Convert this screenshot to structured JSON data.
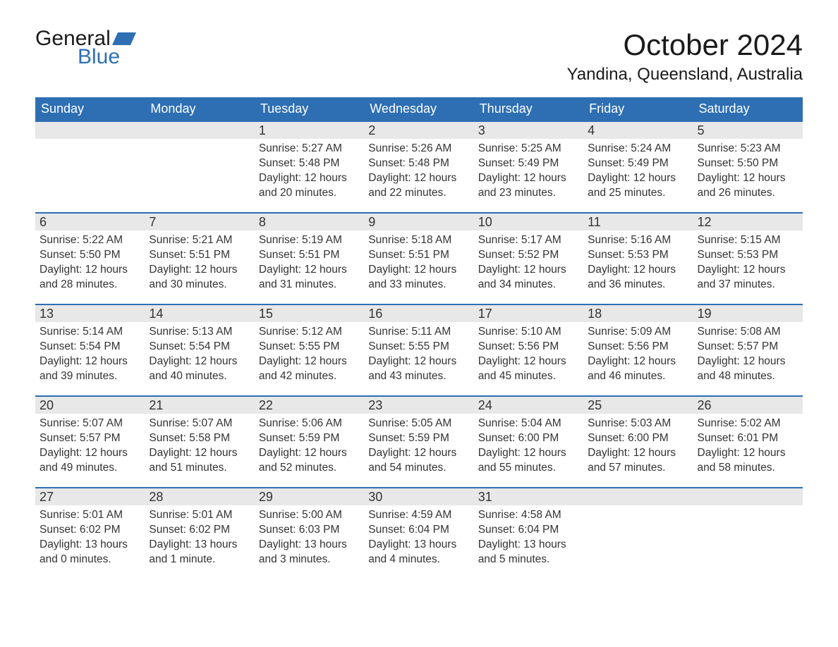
{
  "logo": {
    "word1": "General",
    "word2": "Blue"
  },
  "title": "October 2024",
  "location": "Yandina, Queensland, Australia",
  "colors": {
    "header_bg": "#2e6fb3",
    "header_text": "#ffffff",
    "daynum_bg": "#e8e8e8",
    "row_border": "#2e6fb3",
    "text": "#333333",
    "logo_blue": "#2e6fb3"
  },
  "weekdays": [
    "Sunday",
    "Monday",
    "Tuesday",
    "Wednesday",
    "Thursday",
    "Friday",
    "Saturday"
  ],
  "weeks": [
    [
      {
        "day": "",
        "sunrise": "",
        "sunset": "",
        "daylight": ""
      },
      {
        "day": "",
        "sunrise": "",
        "sunset": "",
        "daylight": ""
      },
      {
        "day": "1",
        "sunrise": "Sunrise: 5:27 AM",
        "sunset": "Sunset: 5:48 PM",
        "daylight": "Daylight: 12 hours and 20 minutes."
      },
      {
        "day": "2",
        "sunrise": "Sunrise: 5:26 AM",
        "sunset": "Sunset: 5:48 PM",
        "daylight": "Daylight: 12 hours and 22 minutes."
      },
      {
        "day": "3",
        "sunrise": "Sunrise: 5:25 AM",
        "sunset": "Sunset: 5:49 PM",
        "daylight": "Daylight: 12 hours and 23 minutes."
      },
      {
        "day": "4",
        "sunrise": "Sunrise: 5:24 AM",
        "sunset": "Sunset: 5:49 PM",
        "daylight": "Daylight: 12 hours and 25 minutes."
      },
      {
        "day": "5",
        "sunrise": "Sunrise: 5:23 AM",
        "sunset": "Sunset: 5:50 PM",
        "daylight": "Daylight: 12 hours and 26 minutes."
      }
    ],
    [
      {
        "day": "6",
        "sunrise": "Sunrise: 5:22 AM",
        "sunset": "Sunset: 5:50 PM",
        "daylight": "Daylight: 12 hours and 28 minutes."
      },
      {
        "day": "7",
        "sunrise": "Sunrise: 5:21 AM",
        "sunset": "Sunset: 5:51 PM",
        "daylight": "Daylight: 12 hours and 30 minutes."
      },
      {
        "day": "8",
        "sunrise": "Sunrise: 5:19 AM",
        "sunset": "Sunset: 5:51 PM",
        "daylight": "Daylight: 12 hours and 31 minutes."
      },
      {
        "day": "9",
        "sunrise": "Sunrise: 5:18 AM",
        "sunset": "Sunset: 5:51 PM",
        "daylight": "Daylight: 12 hours and 33 minutes."
      },
      {
        "day": "10",
        "sunrise": "Sunrise: 5:17 AM",
        "sunset": "Sunset: 5:52 PM",
        "daylight": "Daylight: 12 hours and 34 minutes."
      },
      {
        "day": "11",
        "sunrise": "Sunrise: 5:16 AM",
        "sunset": "Sunset: 5:53 PM",
        "daylight": "Daylight: 12 hours and 36 minutes."
      },
      {
        "day": "12",
        "sunrise": "Sunrise: 5:15 AM",
        "sunset": "Sunset: 5:53 PM",
        "daylight": "Daylight: 12 hours and 37 minutes."
      }
    ],
    [
      {
        "day": "13",
        "sunrise": "Sunrise: 5:14 AM",
        "sunset": "Sunset: 5:54 PM",
        "daylight": "Daylight: 12 hours and 39 minutes."
      },
      {
        "day": "14",
        "sunrise": "Sunrise: 5:13 AM",
        "sunset": "Sunset: 5:54 PM",
        "daylight": "Daylight: 12 hours and 40 minutes."
      },
      {
        "day": "15",
        "sunrise": "Sunrise: 5:12 AM",
        "sunset": "Sunset: 5:55 PM",
        "daylight": "Daylight: 12 hours and 42 minutes."
      },
      {
        "day": "16",
        "sunrise": "Sunrise: 5:11 AM",
        "sunset": "Sunset: 5:55 PM",
        "daylight": "Daylight: 12 hours and 43 minutes."
      },
      {
        "day": "17",
        "sunrise": "Sunrise: 5:10 AM",
        "sunset": "Sunset: 5:56 PM",
        "daylight": "Daylight: 12 hours and 45 minutes."
      },
      {
        "day": "18",
        "sunrise": "Sunrise: 5:09 AM",
        "sunset": "Sunset: 5:56 PM",
        "daylight": "Daylight: 12 hours and 46 minutes."
      },
      {
        "day": "19",
        "sunrise": "Sunrise: 5:08 AM",
        "sunset": "Sunset: 5:57 PM",
        "daylight": "Daylight: 12 hours and 48 minutes."
      }
    ],
    [
      {
        "day": "20",
        "sunrise": "Sunrise: 5:07 AM",
        "sunset": "Sunset: 5:57 PM",
        "daylight": "Daylight: 12 hours and 49 minutes."
      },
      {
        "day": "21",
        "sunrise": "Sunrise: 5:07 AM",
        "sunset": "Sunset: 5:58 PM",
        "daylight": "Daylight: 12 hours and 51 minutes."
      },
      {
        "day": "22",
        "sunrise": "Sunrise: 5:06 AM",
        "sunset": "Sunset: 5:59 PM",
        "daylight": "Daylight: 12 hours and 52 minutes."
      },
      {
        "day": "23",
        "sunrise": "Sunrise: 5:05 AM",
        "sunset": "Sunset: 5:59 PM",
        "daylight": "Daylight: 12 hours and 54 minutes."
      },
      {
        "day": "24",
        "sunrise": "Sunrise: 5:04 AM",
        "sunset": "Sunset: 6:00 PM",
        "daylight": "Daylight: 12 hours and 55 minutes."
      },
      {
        "day": "25",
        "sunrise": "Sunrise: 5:03 AM",
        "sunset": "Sunset: 6:00 PM",
        "daylight": "Daylight: 12 hours and 57 minutes."
      },
      {
        "day": "26",
        "sunrise": "Sunrise: 5:02 AM",
        "sunset": "Sunset: 6:01 PM",
        "daylight": "Daylight: 12 hours and 58 minutes."
      }
    ],
    [
      {
        "day": "27",
        "sunrise": "Sunrise: 5:01 AM",
        "sunset": "Sunset: 6:02 PM",
        "daylight": "Daylight: 13 hours and 0 minutes."
      },
      {
        "day": "28",
        "sunrise": "Sunrise: 5:01 AM",
        "sunset": "Sunset: 6:02 PM",
        "daylight": "Daylight: 13 hours and 1 minute."
      },
      {
        "day": "29",
        "sunrise": "Sunrise: 5:00 AM",
        "sunset": "Sunset: 6:03 PM",
        "daylight": "Daylight: 13 hours and 3 minutes."
      },
      {
        "day": "30",
        "sunrise": "Sunrise: 4:59 AM",
        "sunset": "Sunset: 6:04 PM",
        "daylight": "Daylight: 13 hours and 4 minutes."
      },
      {
        "day": "31",
        "sunrise": "Sunrise: 4:58 AM",
        "sunset": "Sunset: 6:04 PM",
        "daylight": "Daylight: 13 hours and 5 minutes."
      },
      {
        "day": "",
        "sunrise": "",
        "sunset": "",
        "daylight": ""
      },
      {
        "day": "",
        "sunrise": "",
        "sunset": "",
        "daylight": ""
      }
    ]
  ]
}
